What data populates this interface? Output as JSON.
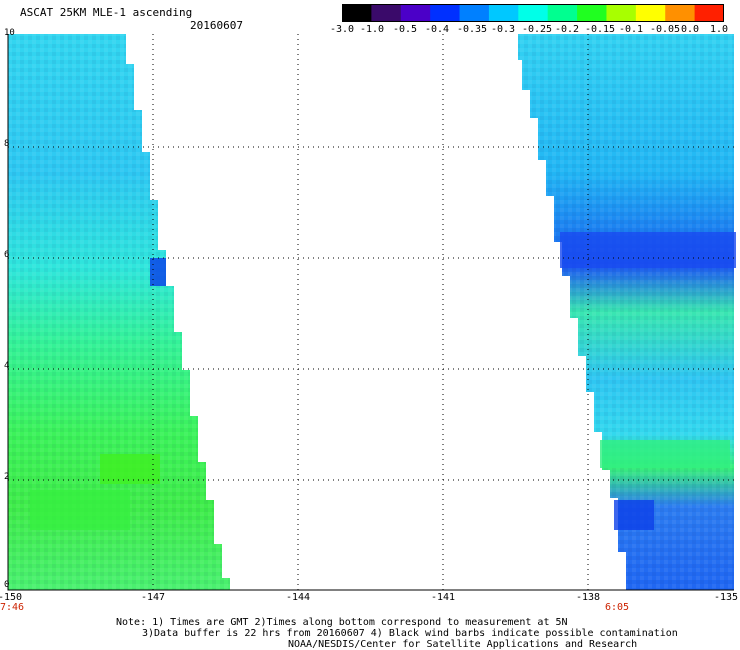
{
  "header": {
    "title": "ASCAT 25KM MLE-1 ascending",
    "date": "20160607"
  },
  "colorbar": {
    "labels": [
      "-3.0",
      "-1.0",
      "-0.5",
      "-0.4",
      "-0.35",
      "-0.3",
      "-0.25",
      "-0.2",
      "-0.15",
      "-0.1",
      "-0.05",
      "0.0",
      "1.0"
    ],
    "colors": [
      "#000000",
      "#3a0a6a",
      "#4b00c8",
      "#0030ff",
      "#0080ff",
      "#00c8ff",
      "#00ffe8",
      "#00ff90",
      "#20ff20",
      "#a8ff00",
      "#ffff00",
      "#ff9000",
      "#ff2000"
    ]
  },
  "axes": {
    "y_ticks": [
      "0",
      "2",
      "4",
      "6",
      "8",
      "10"
    ],
    "x_ticks": [
      "-150",
      "-147",
      "-144",
      "-141",
      "-138",
      "-135"
    ],
    "time_left": "7:46",
    "time_right": "6:05"
  },
  "notes": {
    "line1": "Note: 1) Times are GMT 2)Times along bottom correspond to measurement at 5N",
    "line2": "3)Data buffer is 22 hrs from 20160607 4) Black wind barbs indicate possible contamination",
    "line3": "NOAA/NESDIS/Center for Satellite Applications and Research"
  }
}
